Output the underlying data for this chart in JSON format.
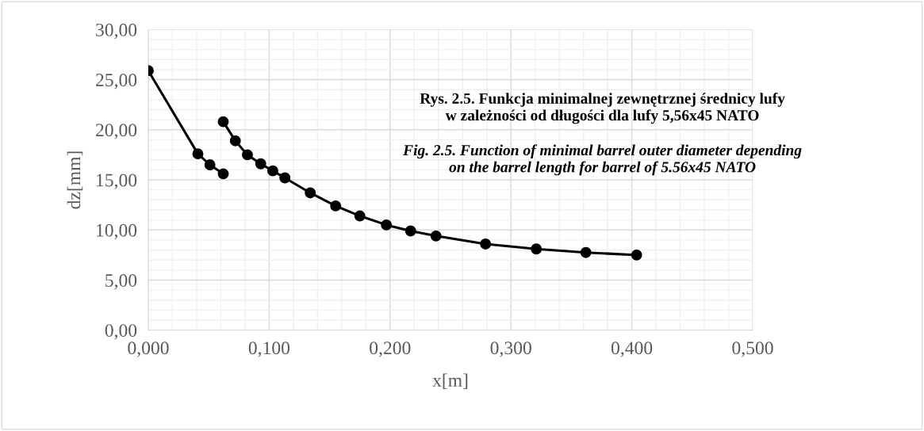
{
  "chart_data": {
    "type": "line",
    "title": "Rys. 2.5. Funkcja minimalnej zewnętrznej średnicy lufy\nw zależności od długości dla lufy 5,56x45 NATO",
    "subtitle": "Fig. 2.5. Function of minimal barrel outer diameter depending\non the barrel length for barrel of 5.56x45 NATO",
    "xlabel": "x[m]",
    "ylabel": "dz[mm]",
    "series": [
      {
        "color": "#000000",
        "x": [
          0.0,
          0.041,
          0.051,
          0.062
        ],
        "values": [
          25.9,
          17.6,
          16.5,
          15.6
        ]
      },
      {
        "color": "#000000",
        "x": [
          0.062,
          0.072,
          0.082,
          0.093,
          0.103,
          0.113,
          0.134,
          0.155,
          0.175,
          0.197,
          0.217,
          0.238,
          0.279,
          0.321,
          0.362,
          0.404
        ],
        "values": [
          20.8,
          18.9,
          17.5,
          16.6,
          15.9,
          15.2,
          13.7,
          12.4,
          11.4,
          10.5,
          9.9,
          9.4,
          8.6,
          8.1,
          7.75,
          7.5
        ]
      }
    ],
    "xlim": [
      0,
      0.5
    ],
    "xticks": [
      {
        "value": 0,
        "label": "0,000"
      },
      {
        "value": 0.1,
        "label": "0,100"
      },
      {
        "value": 0.2,
        "label": "0,200"
      },
      {
        "value": 0.3,
        "label": "0,300"
      },
      {
        "value": 0.4,
        "label": "0,400"
      },
      {
        "value": 0.5,
        "label": "0,500"
      }
    ],
    "ylim": [
      0,
      30
    ],
    "yticks": [
      {
        "value": 0,
        "label": "0,00"
      },
      {
        "value": 5,
        "label": "5,00"
      },
      {
        "value": 10,
        "label": "10,00"
      },
      {
        "value": 15,
        "label": "15,00"
      },
      {
        "value": 20,
        "label": "20,00"
      },
      {
        "value": 25,
        "label": "25,00"
      },
      {
        "value": 30,
        "label": "30,00"
      }
    ],
    "grid": true,
    "marker": "circle",
    "line_style": "solid",
    "legend": false
  }
}
